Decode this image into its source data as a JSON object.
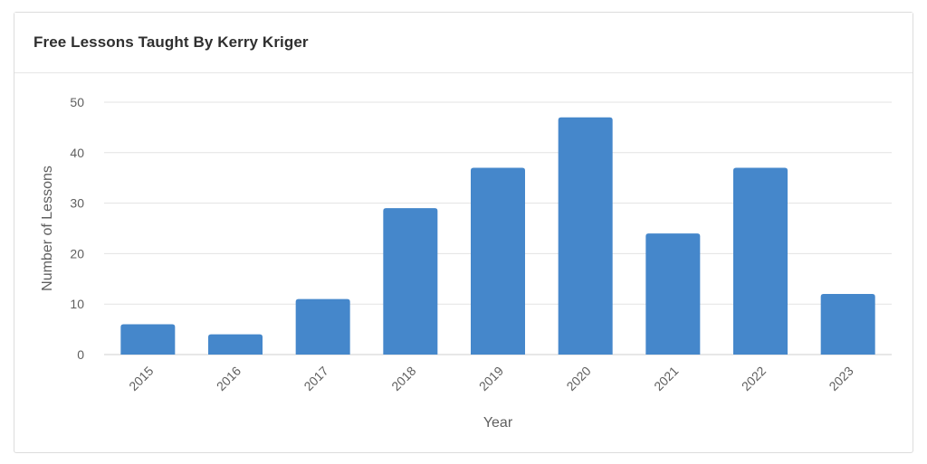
{
  "header": {
    "title": "Free Lessons Taught By Kerry Kriger"
  },
  "colors": {
    "bar": "#4587cb",
    "grid": "#e3e3e3",
    "axis_text": "#5f5f5f"
  },
  "chart_data": {
    "type": "bar",
    "title": "Free Lessons Taught By Kerry Kriger",
    "xlabel": "Year",
    "ylabel": "Number of Lessons",
    "categories": [
      "2015",
      "2016",
      "2017",
      "2018",
      "2019",
      "2020",
      "2021",
      "2022",
      "2023"
    ],
    "values": [
      6,
      4,
      11,
      29,
      37,
      47,
      24,
      37,
      12
    ],
    "ylim": [
      0,
      50
    ],
    "yticks": [
      0,
      10,
      20,
      30,
      40,
      50
    ],
    "grid": true,
    "legend": "none"
  }
}
